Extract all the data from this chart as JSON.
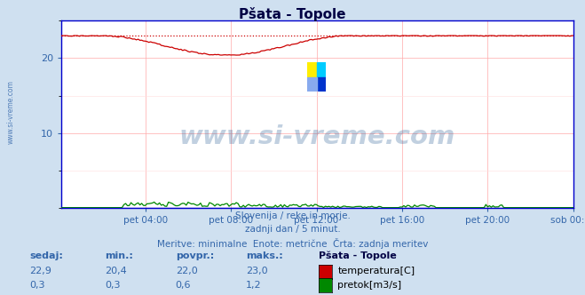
{
  "title": "Pšata - Topole",
  "background_color": "#cfe0f0",
  "plot_bg_color": "#ffffff",
  "x_labels": [
    "pet 04:00",
    "pet 08:00",
    "pet 12:00",
    "pet 16:00",
    "pet 20:00",
    "sob 00:00"
  ],
  "x_ticks_frac": [
    0.1667,
    0.3333,
    0.5,
    0.6667,
    0.8333,
    1.0
  ],
  "n_points": 288,
  "temp_color": "#cc0000",
  "flow_color": "#008800",
  "height_color": "#0000cc",
  "grid_color_major": "#ffaaaa",
  "grid_color_minor": "#ffdddd",
  "watermark_text": "www.si-vreme.com",
  "watermark_color": "#336699",
  "left_text": "www.si-vreme.com",
  "subtitle1": "Slovenija / reke in morje.",
  "subtitle2": "zadnji dan / 5 minut.",
  "subtitle3": "Meritve: minimalne  Enote: metrične  Črta: zadnja meritev",
  "label_color": "#3366aa",
  "legend_title": "Pšata - Topole",
  "legend_entries": [
    "temperatura[C]",
    "pretok[m3/s]"
  ],
  "legend_colors": [
    "#cc0000",
    "#008800"
  ],
  "table_headers": [
    "sedaj:",
    "min.:",
    "povpr.:",
    "maks.:"
  ],
  "table_values_temp": [
    "22,9",
    "20,4",
    "22,0",
    "23,0"
  ],
  "table_values_flow": [
    "0,3",
    "0,3",
    "0,6",
    "1,2"
  ],
  "ymin": 0,
  "ymax": 25,
  "ytick_positions": [
    10,
    20
  ],
  "temp_max_line": 23.0,
  "spine_color": "#0000cc"
}
